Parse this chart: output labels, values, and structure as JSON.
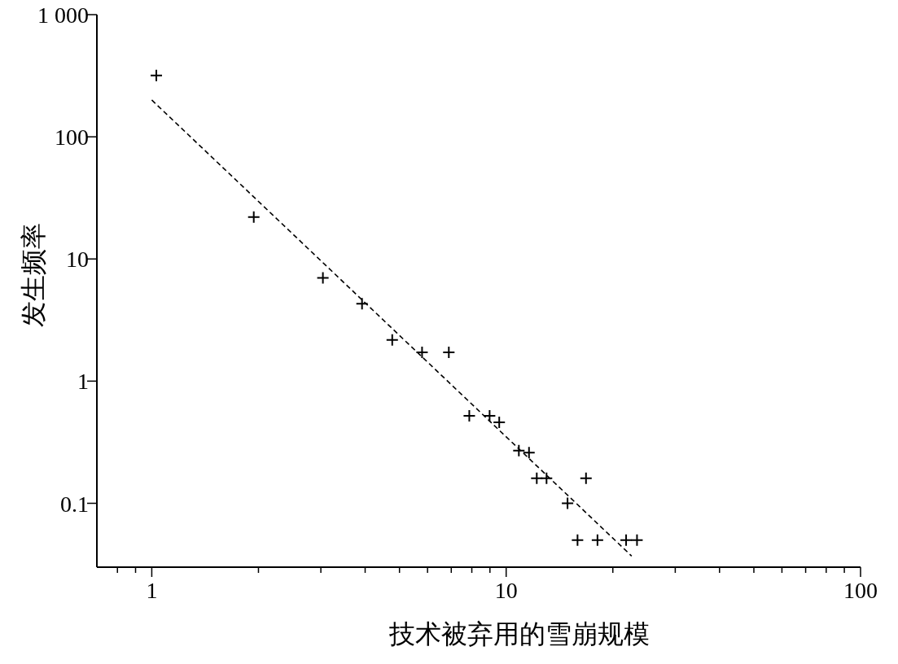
{
  "chart_data": {
    "type": "scatter",
    "xlabel": "技术被弃用的雪崩规模",
    "ylabel": "发生频率",
    "log": "xy",
    "grid": false,
    "xlim": [
      0.7,
      100
    ],
    "ylim": [
      0.03,
      1000
    ],
    "xticks": [
      {
        "value": 0.8,
        "label": null
      },
      {
        "value": 0.9,
        "label": null
      },
      1,
      {
        "value": 2,
        "label": null
      },
      {
        "value": 3,
        "label": null
      },
      {
        "value": 4,
        "label": null
      },
      {
        "value": 5,
        "label": null
      },
      {
        "value": 6,
        "label": null
      },
      {
        "value": 7,
        "label": null
      },
      {
        "value": 8,
        "label": null
      },
      {
        "value": 9,
        "label": null
      },
      10,
      {
        "value": 20,
        "label": null
      },
      {
        "value": 30,
        "label": null
      },
      {
        "value": 40,
        "label": null
      },
      {
        "value": 50,
        "label": null
      },
      {
        "value": 60,
        "label": null
      },
      {
        "value": 70,
        "label": null
      },
      {
        "value": 80,
        "label": null
      },
      {
        "value": 90,
        "label": null
      },
      100
    ],
    "yticks": [
      0.1,
      1,
      10,
      100,
      {
        "value": 1000,
        "label": "1 000"
      }
    ],
    "series": [
      {
        "color": "#000000",
        "marker": "cross",
        "x": [
          1.03,
          1.94,
          3.04,
          3.92,
          4.77,
          5.79,
          6.89,
          7.87,
          8.98,
          9.56,
          10.86,
          11.6,
          12.2,
          13.0,
          14.9,
          16.8,
          15.9,
          18.1,
          21.8,
          23.4
        ],
        "values": [
          318,
          22,
          7.0,
          4.3,
          2.17,
          1.72,
          1.72,
          0.52,
          0.52,
          0.46,
          0.27,
          0.26,
          0.16,
          0.16,
          0.1,
          0.16,
          0.05,
          0.05,
          0.05,
          0.05
        ]
      },
      {
        "type": "line",
        "color": "#000000",
        "line_style": "dashed",
        "x": [
          1,
          22.6
        ],
        "values": [
          200,
          0.037
        ]
      }
    ]
  }
}
